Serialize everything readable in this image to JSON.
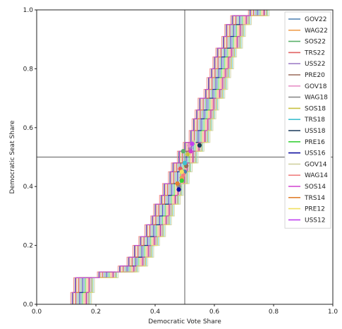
{
  "chart_data": {
    "type": "line",
    "xlabel": "Democratic Vote Share",
    "ylabel": "Democratic Seat Share",
    "xlim": [
      0.0,
      1.0
    ],
    "ylim": [
      0.0,
      1.0
    ],
    "x_ticks": [
      "0.0",
      "0.2",
      "0.4",
      "0.6",
      "0.8",
      "1.0"
    ],
    "y_ticks": [
      "0.0",
      "0.2",
      "0.4",
      "0.6",
      "0.8",
      "1.0"
    ],
    "grid": false,
    "reference_lines": {
      "x": 0.5,
      "y": 0.5
    },
    "legend_position": "top-right",
    "curve_seats_y": [
      0.0,
      0.04,
      0.09,
      0.11,
      0.13,
      0.16,
      0.2,
      0.23,
      0.27,
      0.3,
      0.34,
      0.37,
      0.41,
      0.45,
      0.48,
      0.52,
      0.55,
      0.59,
      0.63,
      0.66,
      0.7,
      0.73,
      0.77,
      0.8,
      0.84,
      0.87,
      0.91,
      0.95,
      0.98,
      1.0
    ],
    "curve_votes_x": [
      0.12,
      0.15,
      0.16,
      0.24,
      0.31,
      0.34,
      0.36,
      0.38,
      0.4,
      0.42,
      0.43,
      0.45,
      0.46,
      0.48,
      0.49,
      0.51,
      0.53,
      0.55,
      0.56,
      0.57,
      0.58,
      0.6,
      0.61,
      0.62,
      0.63,
      0.64,
      0.66,
      0.67,
      0.69,
      0.75
    ],
    "series": [
      {
        "name": "GOV22",
        "color": "#4a7fb0",
        "offset": 0.0,
        "point": [
          0.5,
          0.45
        ]
      },
      {
        "name": "WAG22",
        "color": "#f0a050",
        "offset": 0.01,
        "point": [
          0.49,
          0.43
        ]
      },
      {
        "name": "SOS22",
        "color": "#5ab06a",
        "offset": -0.01,
        "point": [
          0.495,
          0.52
        ]
      },
      {
        "name": "TRS22",
        "color": "#e06060",
        "offset": 0.015,
        "point": [
          0.485,
          0.46
        ]
      },
      {
        "name": "USS22",
        "color": "#a080c8",
        "offset": -0.015,
        "point": [
          0.52,
          0.53
        ]
      },
      {
        "name": "PRE20",
        "color": "#9a6a5a",
        "offset": 0.02,
        "point": [
          0.505,
          0.47
        ]
      },
      {
        "name": "GOV18",
        "color": "#e890c8",
        "offset": -0.02,
        "point": [
          0.515,
          0.54
        ]
      },
      {
        "name": "WAG18",
        "color": "#8a8a8a",
        "offset": 0.025,
        "point": [
          0.48,
          0.4
        ]
      },
      {
        "name": "SOS18",
        "color": "#c8c040",
        "offset": -0.025,
        "point": [
          0.51,
          0.51
        ]
      },
      {
        "name": "TRS18",
        "color": "#40c0d0",
        "offset": 0.03,
        "point": [
          0.5,
          0.48
        ]
      },
      {
        "name": "USS18",
        "color": "#1a3a5a",
        "offset": -0.03,
        "point": [
          0.55,
          0.54
        ]
      },
      {
        "name": "PRE16",
        "color": "#3ad03a",
        "offset": 0.005,
        "point": [
          0.49,
          0.42
        ]
      },
      {
        "name": "USS16",
        "color": "#1010a0",
        "offset": -0.005,
        "point": [
          0.48,
          0.39
        ]
      },
      {
        "name": "GOV14",
        "color": "#d0d0a0",
        "offset": 0.035,
        "point": [
          0.53,
          0.55
        ]
      },
      {
        "name": "WAG14",
        "color": "#f08080",
        "offset": -0.035,
        "point": [
          0.495,
          0.44
        ]
      },
      {
        "name": "SOS14",
        "color": "#d040d0",
        "offset": 0.018,
        "point": [
          0.52,
          0.52
        ]
      },
      {
        "name": "TRS14",
        "color": "#e08030",
        "offset": -0.018,
        "point": [
          0.475,
          0.41
        ]
      },
      {
        "name": "PRE12",
        "color": "#f0e060",
        "offset": 0.028,
        "point": [
          0.49,
          0.45
        ]
      },
      {
        "name": "USS12",
        "color": "#c040f0",
        "offset": -0.028,
        "point": [
          0.525,
          0.545
        ]
      }
    ]
  }
}
